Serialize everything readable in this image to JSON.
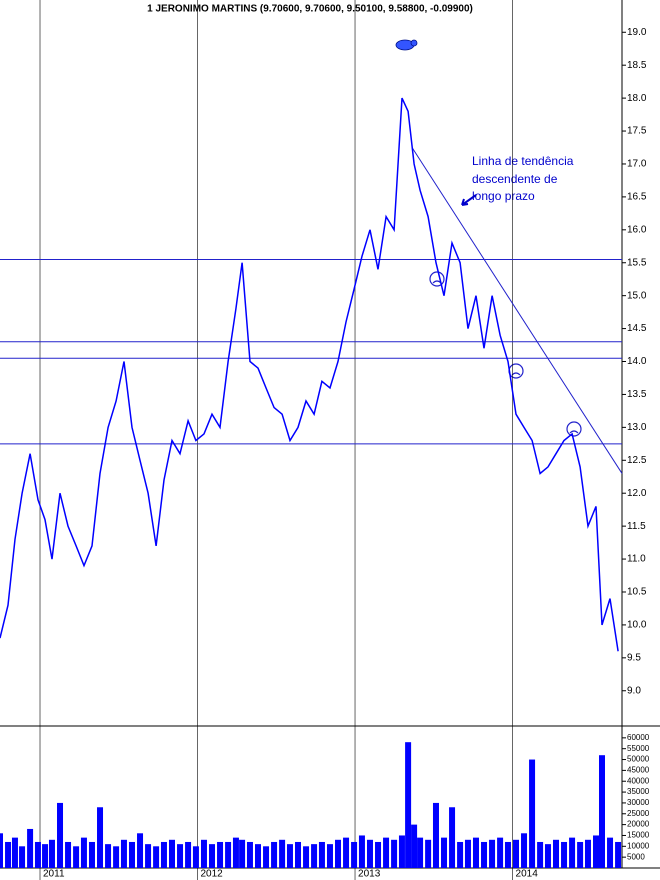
{
  "chart_data": [
    {
      "type": "line",
      "title": "1 JERONIMO MARTINS (9.70600, 9.70600, 9.50100, 9.58800, -0.09900)",
      "x": [
        2010.746,
        2010.797,
        2010.841,
        2010.886,
        2010.937,
        2010.987,
        2011.032,
        2011.076,
        2011.127,
        2011.178,
        2011.229,
        2011.279,
        2011.33,
        2011.381,
        2011.432,
        2011.483,
        2011.533,
        2011.584,
        2011.635,
        2011.686,
        2011.737,
        2011.787,
        2011.838,
        2011.889,
        2011.94,
        2011.99,
        2012.041,
        2012.092,
        2012.143,
        2012.194,
        2012.244,
        2012.283,
        2012.333,
        2012.384,
        2012.435,
        2012.486,
        2012.537,
        2012.587,
        2012.638,
        2012.689,
        2012.74,
        2012.79,
        2012.841,
        2012.892,
        2012.943,
        2012.994,
        2013.044,
        2013.095,
        2013.146,
        2013.197,
        2013.248,
        2013.298,
        2013.337,
        2013.375,
        2013.413,
        2013.464,
        2013.514,
        2013.565,
        2013.616,
        2013.667,
        2013.717,
        2013.768,
        2013.819,
        2013.87,
        2013.921,
        2013.971,
        2014.022,
        2014.073,
        2014.124,
        2014.175,
        2014.225,
        2014.276,
        2014.327,
        2014.378,
        2014.429,
        2014.479,
        2014.53,
        2014.568,
        2014.619,
        2014.67
      ],
      "series": [
        {
          "name": "JERONIMO MARTINS",
          "color": "#0000ff",
          "values": [
            9.8,
            10.3,
            11.3,
            12.0,
            12.6,
            11.9,
            11.6,
            11.0,
            12.0,
            11.5,
            11.2,
            10.9,
            11.2,
            12.3,
            13.0,
            13.4,
            14.0,
            13.0,
            12.5,
            12.0,
            11.2,
            12.2,
            12.8,
            12.6,
            13.1,
            12.8,
            12.9,
            13.2,
            13.0,
            14.0,
            14.8,
            15.5,
            14.0,
            13.9,
            13.6,
            13.3,
            13.2,
            12.8,
            13.0,
            13.4,
            13.2,
            13.7,
            13.6,
            14.0,
            14.6,
            15.1,
            15.6,
            16.0,
            15.4,
            16.2,
            16.0,
            18.0,
            17.8,
            17.0,
            16.6,
            16.2,
            15.5,
            15.0,
            15.8,
            15.5,
            14.5,
            15.0,
            14.2,
            15.0,
            14.4,
            14.0,
            13.2,
            13.0,
            12.8,
            12.3,
            12.4,
            12.6,
            12.8,
            12.9,
            12.4,
            11.5,
            11.8,
            10.0,
            10.4,
            9.6
          ]
        }
      ],
      "xlim": [
        2010.746,
        2014.695
      ],
      "xticks": [
        2011,
        2012,
        2013,
        2014
      ],
      "ylim": [
        8.48,
        19.49
      ],
      "yticks": [
        {
          "value": 9,
          "label": "9.0"
        },
        9.5,
        {
          "value": 10,
          "label": "10.0"
        },
        10.5,
        {
          "value": 11,
          "label": "11.0"
        },
        11.5,
        {
          "value": 12,
          "label": "12.0"
        },
        12.5,
        {
          "value": 13,
          "label": "13.0"
        },
        13.5,
        {
          "value": 14,
          "label": "14.0"
        },
        14.5,
        {
          "value": 15,
          "label": "15.0"
        },
        15.5,
        {
          "value": 16,
          "label": "16.0"
        },
        16.5,
        {
          "value": 17,
          "label": "17.0"
        },
        17.5,
        {
          "value": 18,
          "label": "18.0"
        },
        18.5,
        {
          "value": 19,
          "label": "19.0"
        }
      ],
      "hlines": [
        15.55,
        14.3,
        14.05,
        12.75
      ],
      "hline_color": "#2222cc",
      "trendline": {
        "x": [
          2013.362,
          2014.695
        ],
        "y": [
          17.25,
          12.3
        ]
      },
      "annotation": [
        "Linha de tendência",
        "descendente de",
        "longo prazo"
      ]
    },
    {
      "type": "bar",
      "x": [
        2010.746,
        2010.797,
        2010.841,
        2010.886,
        2010.937,
        2010.987,
        2011.032,
        2011.076,
        2011.127,
        2011.178,
        2011.229,
        2011.279,
        2011.33,
        2011.381,
        2011.432,
        2011.483,
        2011.533,
        2011.584,
        2011.635,
        2011.686,
        2011.737,
        2011.787,
        2011.838,
        2011.889,
        2011.94,
        2011.99,
        2012.041,
        2012.092,
        2012.143,
        2012.194,
        2012.244,
        2012.283,
        2012.333,
        2012.384,
        2012.435,
        2012.486,
        2012.537,
        2012.587,
        2012.638,
        2012.689,
        2012.74,
        2012.79,
        2012.841,
        2012.892,
        2012.943,
        2012.994,
        2013.044,
        2013.095,
        2013.146,
        2013.197,
        2013.248,
        2013.298,
        2013.337,
        2013.375,
        2013.413,
        2013.464,
        2013.514,
        2013.565,
        2013.616,
        2013.667,
        2013.717,
        2013.768,
        2013.819,
        2013.87,
        2013.921,
        2013.971,
        2014.022,
        2014.073,
        2014.124,
        2014.175,
        2014.225,
        2014.276,
        2014.327,
        2014.378,
        2014.429,
        2014.479,
        2014.53,
        2014.568,
        2014.619,
        2014.67
      ],
      "values": [
        16000,
        12000,
        14000,
        10000,
        18000,
        12000,
        11000,
        13000,
        30000,
        12000,
        10000,
        14000,
        12000,
        28000,
        11000,
        10000,
        13000,
        12000,
        16000,
        11000,
        10000,
        12000,
        13000,
        11000,
        12000,
        10000,
        13000,
        11000,
        12000,
        12000,
        14000,
        13000,
        12000,
        11000,
        10000,
        12000,
        13000,
        11000,
        12000,
        10000,
        11000,
        12000,
        11000,
        13000,
        14000,
        12000,
        15000,
        13000,
        12000,
        14000,
        13000,
        15000,
        58000,
        20000,
        14000,
        13000,
        30000,
        14000,
        28000,
        12000,
        13000,
        14000,
        12000,
        13000,
        14000,
        12000,
        13000,
        16000,
        50000,
        12000,
        11000,
        13000,
        12000,
        14000,
        12000,
        13000,
        15000,
        52000,
        14000,
        12000
      ],
      "color": "#0000ff",
      "ylim": [
        0,
        65000
      ],
      "yticks": [
        5000,
        10000,
        15000,
        20000,
        25000,
        30000,
        35000,
        40000,
        45000,
        50000,
        55000,
        60000
      ]
    }
  ]
}
